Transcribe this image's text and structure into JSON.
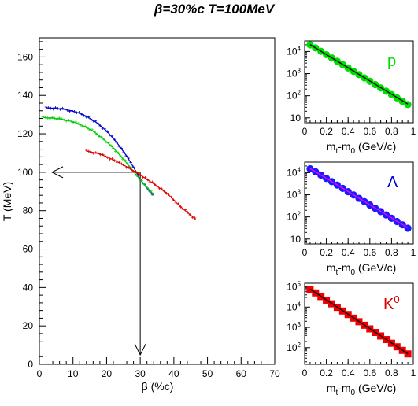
{
  "title": "β=30%c T=100MeV",
  "chart_data": [
    {
      "type": "scatter",
      "xlabel": "β (%c)",
      "ylabel": "T (MeV)",
      "xlim": [
        0,
        70
      ],
      "ylim": [
        0,
        170
      ],
      "xticks": [
        0,
        10,
        20,
        30,
        40,
        50,
        60,
        70
      ],
      "yticks": [
        0,
        20,
        40,
        60,
        80,
        100,
        120,
        140,
        160
      ],
      "grid": false,
      "series": [
        {
          "color": "#0000cc",
          "points": [
            [
              2,
              133.5
            ],
            [
              5,
              133.3
            ],
            [
              8,
              132.6
            ],
            [
              11,
              131.3
            ],
            [
              14,
              129.1
            ],
            [
              17,
              125.9
            ],
            [
              20,
              121.5
            ],
            [
              23,
              115.6
            ],
            [
              26,
              108.3
            ],
            [
              28,
              102.6
            ],
            [
              30,
              96.2
            ],
            [
              32,
              91.8
            ],
            [
              34,
              88.0
            ]
          ]
        },
        {
          "color": "#00cc00",
          "points": [
            [
              1,
              128.5
            ],
            [
              4,
              128.2
            ],
            [
              7,
              127.5
            ],
            [
              10,
              126.3
            ],
            [
              13,
              124.2
            ],
            [
              16,
              121.4
            ],
            [
              19,
              117.4
            ],
            [
              22,
              112.6
            ],
            [
              25,
              106.8
            ],
            [
              28,
              100.5
            ],
            [
              30,
              96.0
            ],
            [
              32,
              92.0
            ],
            [
              34,
              88.5
            ]
          ]
        },
        {
          "color": "#dd0000",
          "points": [
            [
              14,
              111
            ],
            [
              18,
              109.5
            ],
            [
              22,
              106.5
            ],
            [
              26,
              102.8
            ],
            [
              30,
              98.6
            ],
            [
              34,
              94.0
            ],
            [
              38,
              89.0
            ],
            [
              42,
              82.0
            ],
            [
              46.5,
              75.5
            ]
          ]
        }
      ],
      "annotations": {
        "crosshair_beta": 30,
        "crosshair_T": 100
      }
    },
    {
      "type": "scatter",
      "particle": "p",
      "label_color": "#00dd00",
      "marker_color": "#00dd00",
      "xlabel": "mt-m0 (GeV/c)",
      "xlim": [
        0,
        1
      ],
      "ylim": [
        6,
        30000
      ],
      "yscale": "log",
      "xticks": [
        "0",
        "0.2",
        "0.4",
        "0.6",
        "0.8",
        "1"
      ],
      "yticks": [
        {
          "base": "10",
          "exp": "4"
        },
        {
          "base": "10",
          "exp": "3"
        },
        {
          "base": "10",
          "exp": "2"
        },
        {
          "base": "10",
          "exp": ""
        }
      ],
      "fit_color": "#000000",
      "points": [
        [
          0.05,
          20000
        ],
        [
          0.1,
          14500
        ],
        [
          0.15,
          10200
        ],
        [
          0.2,
          7200
        ],
        [
          0.25,
          5100
        ],
        [
          0.3,
          3600
        ],
        [
          0.35,
          2540
        ],
        [
          0.4,
          1800
        ],
        [
          0.45,
          1270
        ],
        [
          0.5,
          900
        ],
        [
          0.55,
          640
        ],
        [
          0.6,
          450
        ],
        [
          0.65,
          320
        ],
        [
          0.7,
          225
        ],
        [
          0.75,
          160
        ],
        [
          0.8,
          112
        ],
        [
          0.85,
          80
        ],
        [
          0.9,
          56
        ],
        [
          0.95,
          40
        ]
      ],
      "fit": [
        [
          0.05,
          20500
        ],
        [
          0.95,
          42
        ]
      ]
    },
    {
      "type": "scatter",
      "particle": "Λ",
      "label_color": "#0000dd",
      "marker_color": "#1a1aff",
      "xlabel": "mt-m0 (GeV/c)",
      "xlim": [
        0,
        1
      ],
      "ylim": [
        6,
        30000
      ],
      "yscale": "log",
      "xticks": [
        "0",
        "0.2",
        "0.4",
        "0.6",
        "0.8",
        "1"
      ],
      "yticks": [
        {
          "base": "10",
          "exp": "4"
        },
        {
          "base": "10",
          "exp": "3"
        },
        {
          "base": "10",
          "exp": "2"
        },
        {
          "base": "10",
          "exp": ""
        }
      ],
      "fit_color": "#ff00ff",
      "points": [
        [
          0.05,
          15000
        ],
        [
          0.1,
          11000
        ],
        [
          0.15,
          7800
        ],
        [
          0.2,
          5500
        ],
        [
          0.25,
          3900
        ],
        [
          0.3,
          2750
        ],
        [
          0.35,
          1950
        ],
        [
          0.4,
          1380
        ],
        [
          0.45,
          980
        ],
        [
          0.5,
          690
        ],
        [
          0.55,
          490
        ],
        [
          0.6,
          345
        ],
        [
          0.65,
          245
        ],
        [
          0.7,
          174
        ],
        [
          0.75,
          123
        ],
        [
          0.8,
          87
        ],
        [
          0.85,
          62
        ],
        [
          0.9,
          44
        ],
        [
          0.95,
          31
        ]
      ],
      "fit": [
        [
          0.05,
          15500
        ],
        [
          0.95,
          32
        ]
      ]
    },
    {
      "type": "scatter",
      "particle": "K⁰",
      "label_color": "#dd0000",
      "marker_color": "#ee0000",
      "xlabel": "mt-m0 (GeV/c)",
      "xlim": [
        0,
        1
      ],
      "ylim": [
        15,
        150000
      ],
      "yscale": "log",
      "xticks": [
        "0",
        "0.2",
        "0.4",
        "0.6",
        "0.8",
        "1"
      ],
      "yticks": [
        {
          "base": "10",
          "exp": "5"
        },
        {
          "base": "10",
          "exp": "4"
        },
        {
          "base": "10",
          "exp": "3"
        },
        {
          "base": "10",
          "exp": "2"
        }
      ],
      "fit_color": "#000000",
      "points": [
        [
          0.05,
          75000
        ],
        [
          0.1,
          50000
        ],
        [
          0.15,
          33000
        ],
        [
          0.2,
          22000
        ],
        [
          0.25,
          14500
        ],
        [
          0.3,
          9700
        ],
        [
          0.35,
          6400
        ],
        [
          0.4,
          4300
        ],
        [
          0.45,
          2850
        ],
        [
          0.5,
          1900
        ],
        [
          0.55,
          1270
        ],
        [
          0.6,
          840
        ],
        [
          0.65,
          560
        ],
        [
          0.7,
          375
        ],
        [
          0.75,
          250
        ],
        [
          0.8,
          165
        ],
        [
          0.85,
          110
        ],
        [
          0.9,
          73
        ],
        [
          0.95,
          49
        ]
      ],
      "fit": [
        [
          0.05,
          77000
        ],
        [
          0.95,
          50
        ]
      ]
    }
  ]
}
